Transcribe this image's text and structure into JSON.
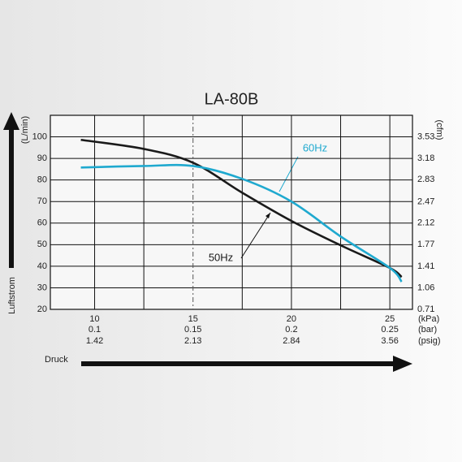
{
  "chart_data": {
    "type": "line",
    "title": "LA-80B",
    "ylabel": "(L/min)",
    "y2label": "(cfm)",
    "y_arrow_label": "Luftstrom",
    "x_arrow_label": "Druck",
    "xlim": [
      7.75,
      26.15
    ],
    "ylim": [
      20,
      110
    ],
    "y2lim": [
      0.71,
      3.8825
    ],
    "yticks": [
      20,
      30,
      40,
      50,
      60,
      70,
      80,
      90,
      100
    ],
    "y2ticks": [
      0.71,
      1.06,
      1.41,
      1.77,
      2.12,
      2.47,
      2.83,
      3.18,
      3.53
    ],
    "xgrid": [
      10,
      12.5,
      15,
      17.5,
      20,
      22.5,
      25
    ],
    "xgrid_dashed": [
      15
    ],
    "grid": true,
    "x_units": [
      {
        "unit": "(kPa)",
        "ticks": [
          10,
          15,
          20,
          25
        ]
      },
      {
        "unit": "(bar)",
        "ticks": [
          0.1,
          0.15,
          0.2,
          0.25
        ]
      },
      {
        "unit": "(psig)",
        "ticks": [
          1.42,
          2.13,
          2.84,
          3.56
        ]
      }
    ],
    "x": [
      9.3,
      12.5,
      15,
      17.5,
      20,
      22.5,
      25,
      25.6
    ],
    "series": [
      {
        "name": "50Hz",
        "color": "#1a1a1a",
        "values": [
          98.6,
          94.4,
          88,
          74.1,
          61,
          49.7,
          39.2,
          35
        ]
      },
      {
        "name": "60Hz",
        "color": "#1fa9cf",
        "values": [
          85.8,
          86.5,
          86.5,
          80.5,
          70,
          53.8,
          39.2,
          32.8
        ]
      }
    ]
  }
}
